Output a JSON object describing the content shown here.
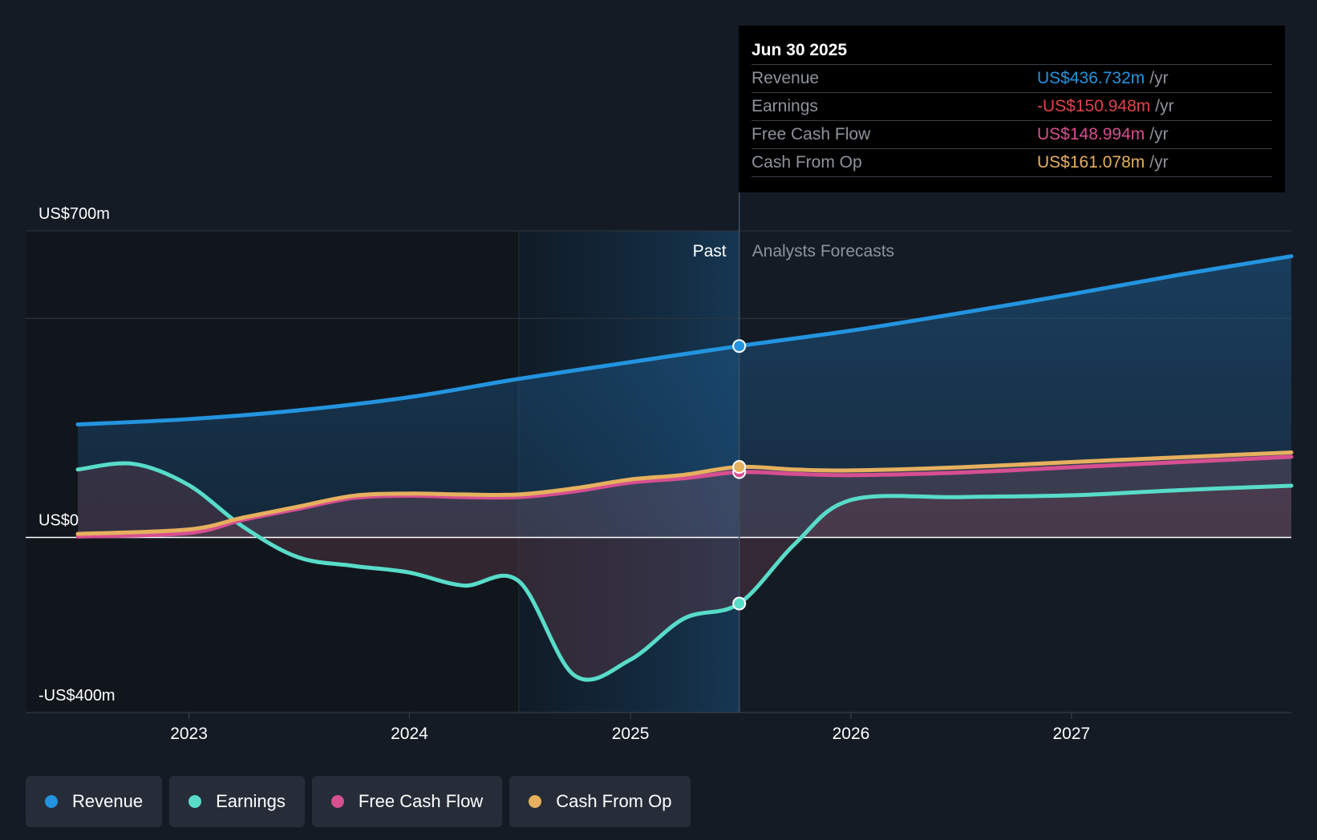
{
  "chart_data": {
    "type": "line",
    "x_ticks": [
      "2023",
      "2024",
      "2025",
      "2026",
      "2027"
    ],
    "y_axis_labels": {
      "top": "US$700m",
      "zero": "US$0",
      "bottom": "-US$400m"
    },
    "ylim": [
      -400,
      700
    ],
    "y_gridlines": [
      700,
      500,
      0
    ],
    "xlim": [
      "2022-07-01",
      "2027-12-31"
    ],
    "divider_date": "2025-06-30",
    "highlight_start_date": "2024-06-30",
    "past_label": "Past",
    "forecast_label": "Analysts Forecasts",
    "grid": true,
    "legend_position": "bottom",
    "series": [
      {
        "name": "Revenue",
        "color": "#2394df",
        "points": [
          [
            "2022-07-01",
            258
          ],
          [
            "2022-12-31",
            270
          ],
          [
            "2023-06-30",
            290
          ],
          [
            "2023-12-31",
            320
          ],
          [
            "2024-06-30",
            362
          ],
          [
            "2024-12-31",
            400
          ],
          [
            "2025-06-30",
            437
          ],
          [
            "2025-12-31",
            472
          ],
          [
            "2026-06-30",
            512
          ],
          [
            "2026-12-31",
            555
          ],
          [
            "2027-06-30",
            600
          ],
          [
            "2027-12-31",
            642
          ]
        ]
      },
      {
        "name": "Earnings",
        "color": "#58dcc9",
        "points": [
          [
            "2022-07-01",
            155
          ],
          [
            "2022-10-01",
            168
          ],
          [
            "2022-12-31",
            120
          ],
          [
            "2023-03-31",
            25
          ],
          [
            "2023-06-30",
            -45
          ],
          [
            "2023-09-30",
            -65
          ],
          [
            "2023-12-31",
            -80
          ],
          [
            "2024-03-31",
            -110
          ],
          [
            "2024-06-30",
            -100
          ],
          [
            "2024-09-30",
            -315
          ],
          [
            "2024-12-31",
            -280
          ],
          [
            "2025-03-31",
            -185
          ],
          [
            "2025-06-30",
            -151
          ],
          [
            "2025-09-30",
            -15
          ],
          [
            "2025-12-31",
            85
          ],
          [
            "2026-06-30",
            92
          ],
          [
            "2026-12-31",
            96
          ],
          [
            "2027-06-30",
            108
          ],
          [
            "2027-12-31",
            118
          ]
        ]
      },
      {
        "name": "Free Cash Flow",
        "color": "#d64f91",
        "points": [
          [
            "2022-07-01",
            2
          ],
          [
            "2022-12-31",
            10
          ],
          [
            "2023-03-31",
            40
          ],
          [
            "2023-06-30",
            65
          ],
          [
            "2023-09-30",
            90
          ],
          [
            "2023-12-31",
            95
          ],
          [
            "2024-03-31",
            92
          ],
          [
            "2024-06-30",
            92
          ],
          [
            "2024-09-30",
            105
          ],
          [
            "2024-12-31",
            125
          ],
          [
            "2025-03-31",
            135
          ],
          [
            "2025-06-30",
            149
          ],
          [
            "2025-09-30",
            145
          ],
          [
            "2025-12-31",
            142
          ],
          [
            "2026-06-30",
            148
          ],
          [
            "2026-12-31",
            160
          ],
          [
            "2027-06-30",
            172
          ],
          [
            "2027-12-31",
            184
          ]
        ]
      },
      {
        "name": "Cash From Op",
        "color": "#e6b05e",
        "points": [
          [
            "2022-07-01",
            8
          ],
          [
            "2022-12-31",
            18
          ],
          [
            "2023-03-31",
            45
          ],
          [
            "2023-06-30",
            70
          ],
          [
            "2023-09-30",
            95
          ],
          [
            "2023-12-31",
            100
          ],
          [
            "2024-03-31",
            98
          ],
          [
            "2024-06-30",
            98
          ],
          [
            "2024-09-30",
            112
          ],
          [
            "2024-12-31",
            132
          ],
          [
            "2025-03-31",
            143
          ],
          [
            "2025-06-30",
            161
          ],
          [
            "2025-09-30",
            155
          ],
          [
            "2025-12-31",
            153
          ],
          [
            "2026-06-30",
            160
          ],
          [
            "2026-12-31",
            172
          ],
          [
            "2027-06-30",
            183
          ],
          [
            "2027-12-31",
            194
          ]
        ]
      }
    ]
  },
  "tooltip": {
    "date": "Jun 30 2025",
    "rows": [
      {
        "label": "Revenue",
        "value": "US$436.732m",
        "unit": "/yr",
        "color": "#2394df"
      },
      {
        "label": "Earnings",
        "value": "-US$150.948m",
        "unit": "/yr",
        "color": "#e0434b"
      },
      {
        "label": "Free Cash Flow",
        "value": "US$148.994m",
        "unit": "/yr",
        "color": "#d64f91"
      },
      {
        "label": "Cash From Op",
        "value": "US$161.078m",
        "unit": "/yr",
        "color": "#e6b05e"
      }
    ]
  },
  "legend": [
    {
      "label": "Revenue",
      "color": "#2394df"
    },
    {
      "label": "Earnings",
      "color": "#58dcc9"
    },
    {
      "label": "Free Cash Flow",
      "color": "#d64f91"
    },
    {
      "label": "Cash From Op",
      "color": "#e6b05e"
    }
  ]
}
